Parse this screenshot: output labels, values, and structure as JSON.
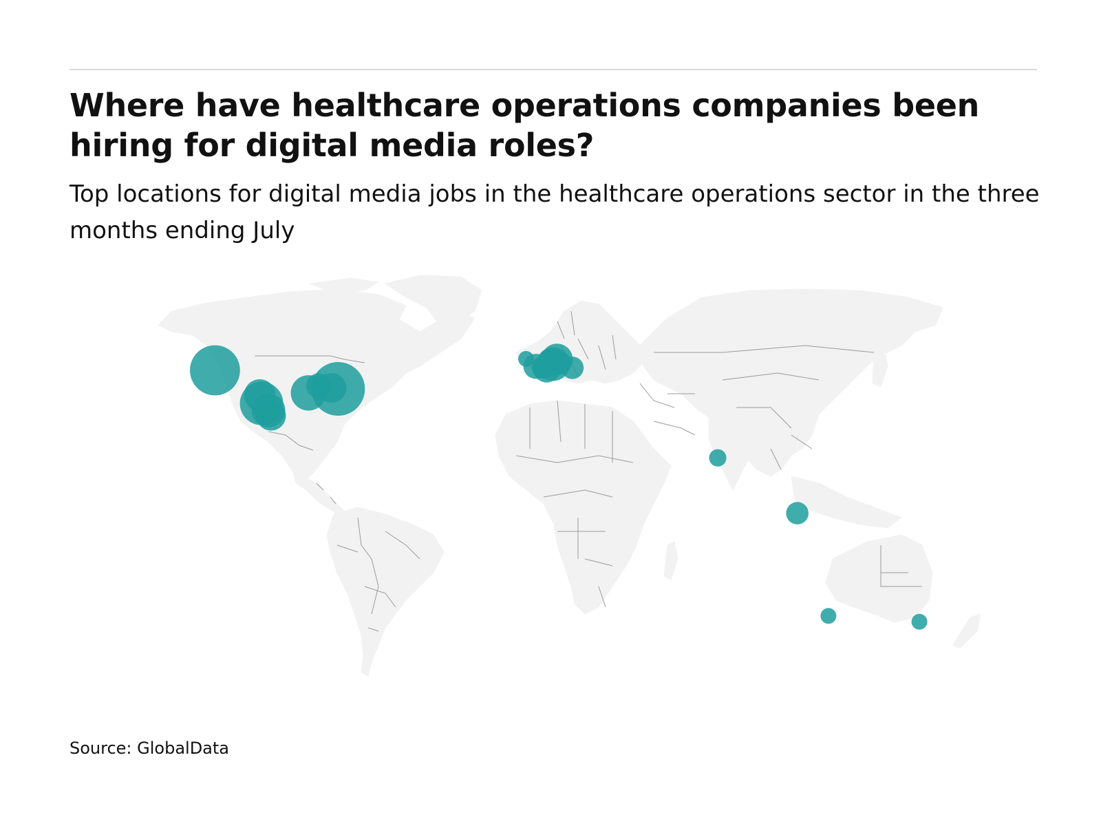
{
  "header": {
    "title": "Where have healthcare operations companies been hiring for digital media roles?",
    "subtitle": "Top locations for digital media jobs in the healthcare operations sector in the three months ending July"
  },
  "footer": {
    "source": "Source: GlobalData"
  },
  "colors": {
    "bubble": "#1f9e9e",
    "land": "#f2f2f2",
    "border": "#9a9a9a",
    "rule": "#d9d9d9"
  },
  "chart_data": {
    "type": "bubble-map",
    "projection": "equirectangular",
    "locations": [
      {
        "lat": 47.5,
        "lon": -122.3,
        "size": 10.0
      },
      {
        "lat": 41.5,
        "lon": -74.5,
        "size": 11.5
      },
      {
        "lat": 39.5,
        "lon": -104.9,
        "size": 4.0
      },
      {
        "lat": 36.8,
        "lon": -104.2,
        "size": 7.5
      },
      {
        "lat": 34.5,
        "lon": -101.5,
        "size": 4.5
      },
      {
        "lat": 32.8,
        "lon": -100.5,
        "size": 3.5
      },
      {
        "lat": 40.2,
        "lon": -86.0,
        "size": 5.0
      },
      {
        "lat": 42.5,
        "lon": -82.0,
        "size": 2.5
      },
      {
        "lat": 41.8,
        "lon": -77.0,
        "size": 3.5
      },
      {
        "lat": 51.2,
        "lon": -1.5,
        "size": 1.0
      },
      {
        "lat": 48.8,
        "lon": 2.3,
        "size": 2.5
      },
      {
        "lat": 48.5,
        "lon": 5.0,
        "size": 2.0
      },
      {
        "lat": 48.0,
        "lon": 6.5,
        "size": 3.0
      },
      {
        "lat": 50.5,
        "lon": 8.0,
        "size": 2.5
      },
      {
        "lat": 49.5,
        "lon": 9.0,
        "size": 4.5
      },
      {
        "lat": 51.0,
        "lon": 10.5,
        "size": 4.0
      },
      {
        "lat": 50.2,
        "lon": 11.5,
        "size": 2.0
      },
      {
        "lat": 48.3,
        "lon": 16.5,
        "size": 2.0
      },
      {
        "lat": 19.2,
        "lon": 72.9,
        "size": 1.2
      },
      {
        "lat": 1.3,
        "lon": 103.8,
        "size": 2.0
      },
      {
        "lat": -31.9,
        "lon": 115.9,
        "size": 1.0
      },
      {
        "lat": -33.8,
        "lon": 151.2,
        "size": 1.0
      }
    ]
  }
}
